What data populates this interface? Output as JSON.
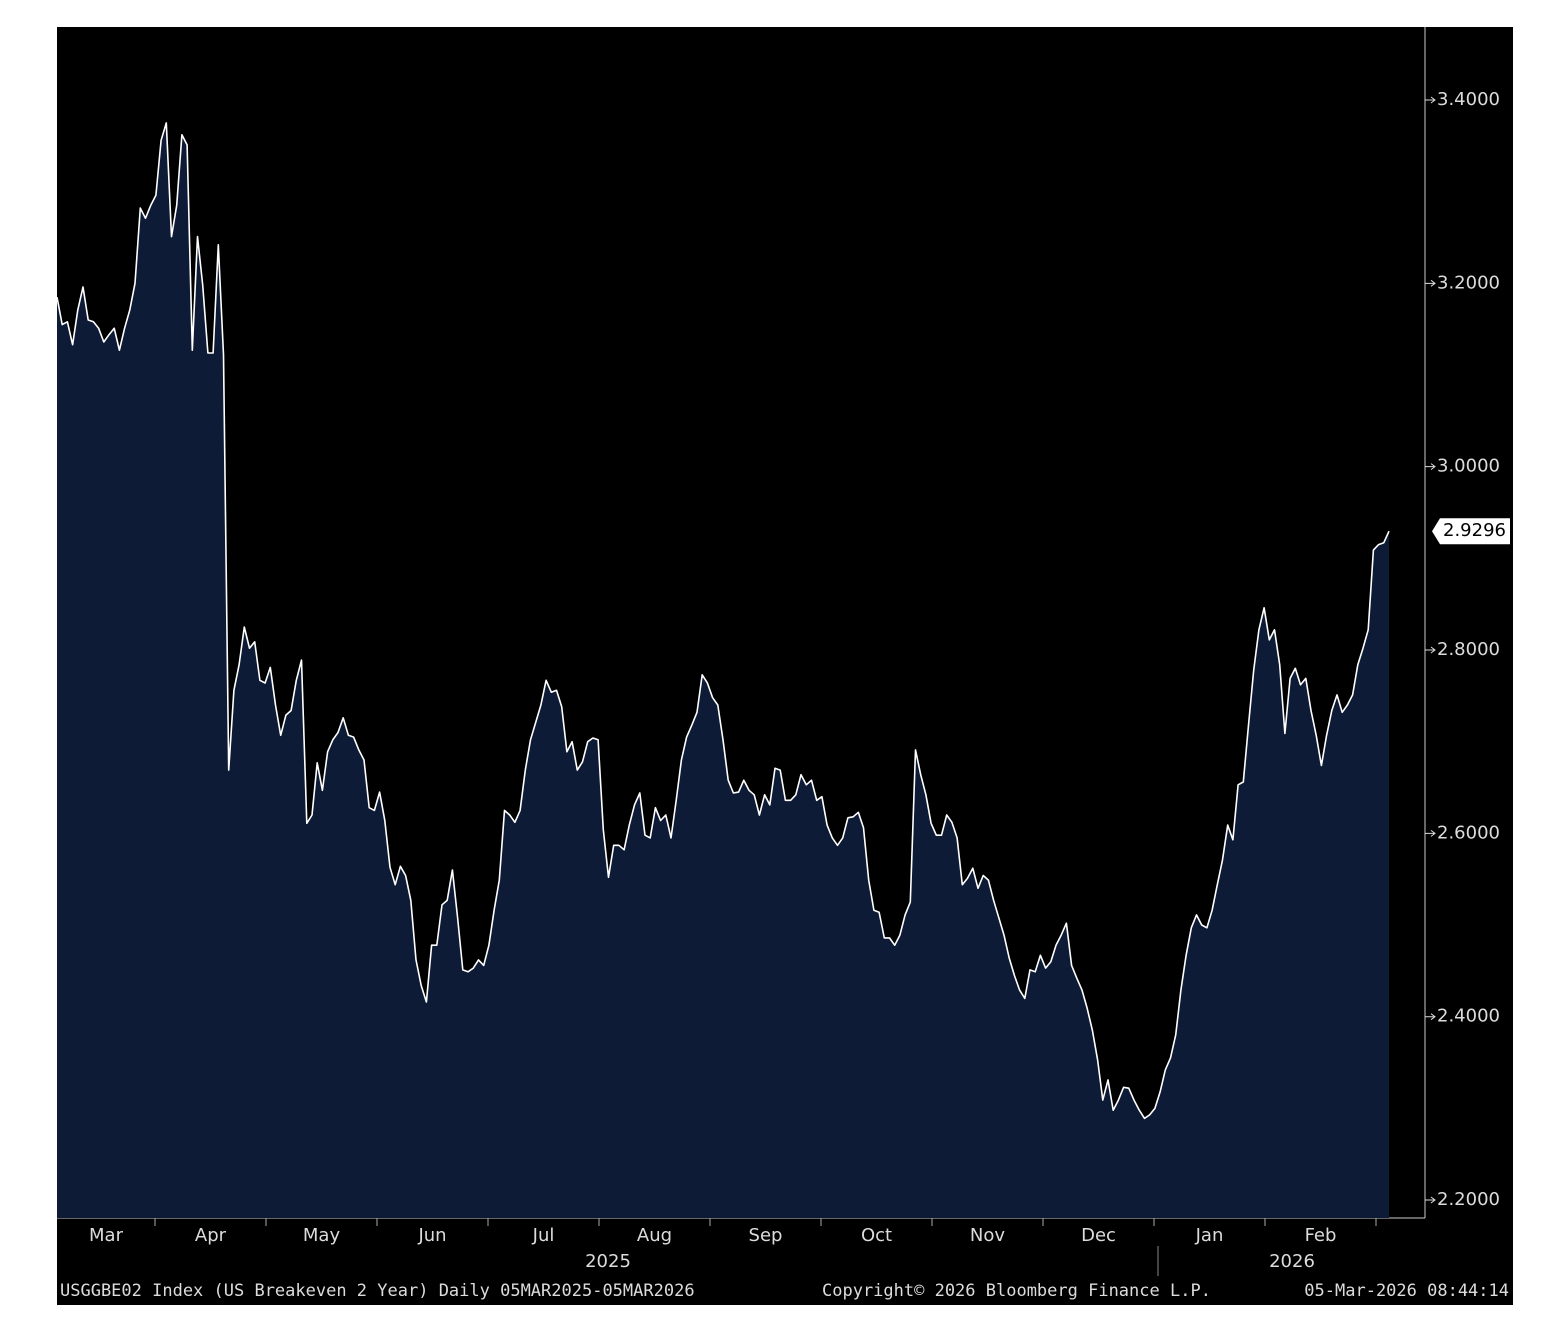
{
  "chart_data": {
    "type": "area",
    "footer_left": "USGGBE02 Index (US Breakeven 2 Year) Daily 05MAR2025-05MAR2026",
    "footer_center": "Copyright© 2026 Bloomberg Finance L.P.",
    "footer_right": "05-Mar-2026 08:44:14",
    "x_labels": [
      "Mar",
      "Apr",
      "May",
      "Jun",
      "Jul",
      "Aug",
      "Sep",
      "Oct",
      "Nov",
      "Dec",
      "Jan",
      "Feb"
    ],
    "years": [
      "2025",
      "2026"
    ],
    "color": "#ffffff",
    "fill": "#0e1b36",
    "ylim": [
      2.1804,
      3.4796
    ],
    "yticks": [
      {
        "value": 2.2,
        "label": "2.2000"
      },
      {
        "value": 2.4,
        "label": "2.4000"
      },
      {
        "value": 2.6,
        "label": "2.6000"
      },
      {
        "value": 2.8,
        "label": "2.8000"
      },
      {
        "value": 3.0,
        "label": "3.0000"
      },
      {
        "value": 3.2,
        "label": "3.2000"
      },
      {
        "value": 3.4,
        "label": "3.4000"
      }
    ],
    "values": [
      3.185,
      3.155,
      3.158,
      3.133,
      3.171,
      3.196,
      3.16,
      3.158,
      3.151,
      3.136,
      3.144,
      3.151,
      3.127,
      3.151,
      3.171,
      3.2,
      3.282,
      3.271,
      3.285,
      3.296,
      3.356,
      3.375,
      3.251,
      3.285,
      3.362,
      3.351,
      3.127,
      3.251,
      3.198,
      3.124,
      3.124,
      3.242,
      3.122,
      2.669,
      2.756,
      2.784,
      2.825,
      2.802,
      2.809,
      2.767,
      2.764,
      2.781,
      2.74,
      2.707,
      2.729,
      2.734,
      2.767,
      2.789,
      2.611,
      2.62,
      2.677,
      2.647,
      2.689,
      2.702,
      2.71,
      2.726,
      2.707,
      2.705,
      2.691,
      2.68,
      2.628,
      2.625,
      2.645,
      2.614,
      2.563,
      2.544,
      2.564,
      2.554,
      2.527,
      2.462,
      2.434,
      2.416,
      2.478,
      2.478,
      2.522,
      2.527,
      2.56,
      2.508,
      2.451,
      2.449,
      2.453,
      2.462,
      2.456,
      2.478,
      2.516,
      2.549,
      2.625,
      2.62,
      2.612,
      2.625,
      2.669,
      2.702,
      2.721,
      2.74,
      2.767,
      2.754,
      2.756,
      2.738,
      2.689,
      2.7,
      2.669,
      2.678,
      2.7,
      2.704,
      2.702,
      2.604,
      2.552,
      2.587,
      2.587,
      2.582,
      2.609,
      2.631,
      2.644,
      2.598,
      2.595,
      2.628,
      2.614,
      2.62,
      2.595,
      2.636,
      2.68,
      2.705,
      2.718,
      2.732,
      2.773,
      2.764,
      2.748,
      2.74,
      2.702,
      2.658,
      2.644,
      2.645,
      2.658,
      2.647,
      2.642,
      2.62,
      2.642,
      2.631,
      2.671,
      2.669,
      2.636,
      2.636,
      2.642,
      2.664,
      2.653,
      2.658,
      2.636,
      2.64,
      2.609,
      2.595,
      2.587,
      2.595,
      2.617,
      2.618,
      2.623,
      2.606,
      2.549,
      2.516,
      2.514,
      2.486,
      2.486,
      2.478,
      2.489,
      2.511,
      2.525,
      2.691,
      2.664,
      2.642,
      2.611,
      2.598,
      2.598,
      2.62,
      2.612,
      2.595,
      2.544,
      2.551,
      2.562,
      2.54,
      2.554,
      2.549,
      2.527,
      2.508,
      2.489,
      2.464,
      2.445,
      2.429,
      2.42,
      2.451,
      2.449,
      2.467,
      2.453,
      2.46,
      2.478,
      2.489,
      2.502,
      2.456,
      2.442,
      2.429,
      2.409,
      2.385,
      2.353,
      2.309,
      2.331,
      2.298,
      2.309,
      2.323,
      2.322,
      2.309,
      2.298,
      2.289,
      2.293,
      2.3,
      2.318,
      2.342,
      2.355,
      2.38,
      2.429,
      2.467,
      2.497,
      2.511,
      2.5,
      2.497,
      2.516,
      2.544,
      2.571,
      2.609,
      2.593,
      2.653,
      2.656,
      2.718,
      2.778,
      2.822,
      2.846,
      2.811,
      2.822,
      2.784,
      2.709,
      2.769,
      2.78,
      2.762,
      2.769,
      2.734,
      2.707,
      2.674,
      2.707,
      2.734,
      2.751,
      2.732,
      2.74,
      2.751,
      2.784,
      2.802,
      2.822,
      2.909,
      2.915,
      2.917,
      2.9296
    ]
  }
}
